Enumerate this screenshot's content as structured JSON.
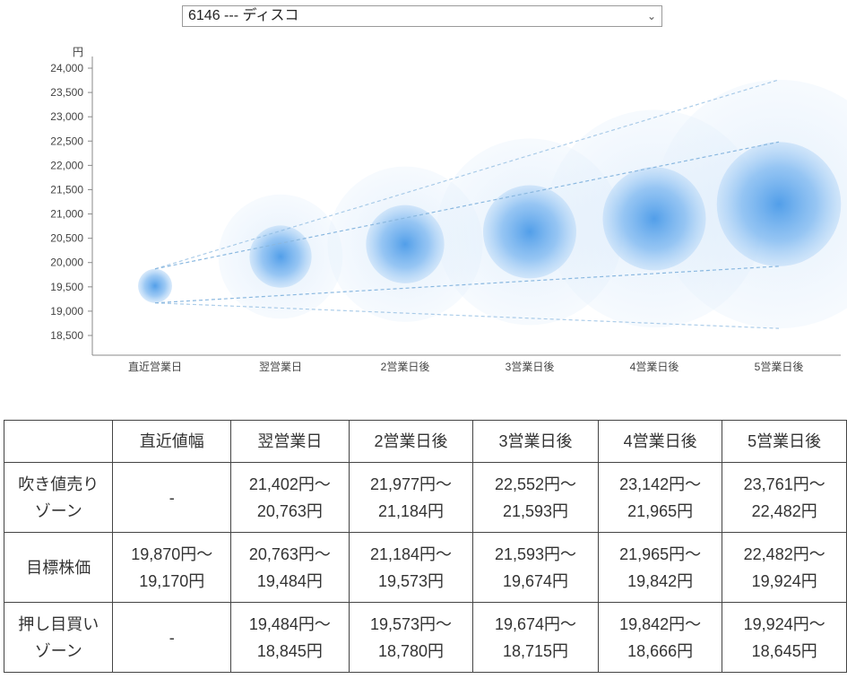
{
  "stock_select": {
    "selected": "6146 --- ディスコ"
  },
  "chart_data": {
    "type": "bubble-forecast",
    "y_unit": "円",
    "ylim": [
      18300,
      24100
    ],
    "y_ticks": [
      "24,000",
      "23,500",
      "23,000",
      "22,500",
      "22,000",
      "21,500",
      "21,000",
      "20,500",
      "20,000",
      "19,500",
      "19,000",
      "18,500"
    ],
    "y_tick_values": [
      24000,
      23500,
      23000,
      22500,
      22000,
      21500,
      21000,
      20500,
      20000,
      19500,
      19000,
      18500
    ],
    "categories": [
      "直近営業日",
      "翌営業日",
      "2営業日後",
      "3営業日後",
      "4営業日後",
      "5営業日後"
    ],
    "center": [
      19520,
      20123,
      20378,
      20633,
      20903,
      21203
    ],
    "inner_high": [
      19870,
      20763,
      21184,
      21593,
      21965,
      22482
    ],
    "inner_low": [
      19170,
      19484,
      19573,
      19674,
      19842,
      19924
    ],
    "outer_high": [
      19870,
      21402,
      21977,
      22552,
      23142,
      23761
    ],
    "outer_low": [
      19170,
      18845,
      18780,
      18715,
      18666,
      18645
    ]
  },
  "table": {
    "headers": [
      "",
      "直近値幅",
      "翌営業日",
      "2営業日後",
      "3営業日後",
      "4営業日後",
      "5営業日後"
    ],
    "rows": [
      {
        "label": [
          "吹き値売り",
          "ゾーン"
        ],
        "cells": [
          [
            "-"
          ],
          [
            "21,402円～",
            "20,763円"
          ],
          [
            "21,977円～",
            "21,184円"
          ],
          [
            "22,552円～",
            "21,593円"
          ],
          [
            "23,142円～",
            "21,965円"
          ],
          [
            "23,761円～",
            "22,482円"
          ]
        ]
      },
      {
        "label": [
          "目標株価"
        ],
        "cells": [
          [
            "19,870円～",
            "19,170円"
          ],
          [
            "20,763円～",
            "19,484円"
          ],
          [
            "21,184円～",
            "19,573円"
          ],
          [
            "21,593円～",
            "19,674円"
          ],
          [
            "21,965円～",
            "19,842円"
          ],
          [
            "22,482円～",
            "19,924円"
          ]
        ]
      },
      {
        "label": [
          "押し目買い",
          "ゾーン"
        ],
        "cells": [
          [
            "-"
          ],
          [
            "19,484円～",
            "18,845円"
          ],
          [
            "19,573円～",
            "18,780円"
          ],
          [
            "19,674円～",
            "18,715円"
          ],
          [
            "19,842円～",
            "18,666円"
          ],
          [
            "19,924円～",
            "18,645円"
          ]
        ]
      }
    ]
  },
  "colors": {
    "bubble": "#4a9ae8",
    "axis": "#888888",
    "grid_line": "#8ab8e0"
  }
}
